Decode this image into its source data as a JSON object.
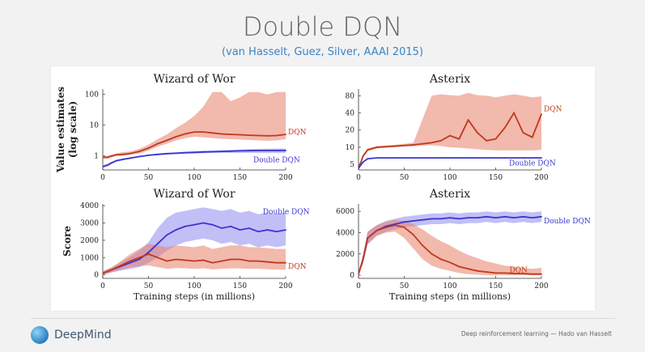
{
  "slide": {
    "title": "Double DQN",
    "subtitle": "(van Hasselt, Guez, Silver, AAAI 2015)",
    "brand": "DeepMind",
    "footer_credit": "Deep reinforcement learning — Hado van Hasselt"
  },
  "colors": {
    "dqn": "#c0391b",
    "ddqn": "#3a35d0",
    "dqn_band": "#e8806a",
    "ddqn_band": "#8f8bee"
  },
  "chart_data": [
    {
      "type": "line",
      "title": "Wizard of Wor",
      "ylabel_line1": "Value estimates",
      "ylabel_line2": "(log scale)",
      "xlabel": "",
      "xlim": [
        0,
        200
      ],
      "ylim": [
        0.35,
        150
      ],
      "yscale": "log",
      "x_ticks": [
        0,
        50,
        100,
        150,
        200
      ],
      "x_tick_labels": [
        "0",
        "50",
        "100",
        "150",
        "200"
      ],
      "y_ticks": [
        1,
        10,
        100
      ],
      "y_tick_labels": [
        "1",
        "10",
        "100"
      ],
      "x": [
        0,
        5,
        10,
        15,
        20,
        30,
        40,
        50,
        60,
        70,
        80,
        90,
        100,
        110,
        120,
        130,
        140,
        150,
        160,
        170,
        180,
        190,
        200
      ],
      "series": [
        {
          "name": "DQN",
          "label_text": "DQN",
          "label_at": [
            202,
            6
          ],
          "values": [
            0.9,
            0.9,
            1.0,
            1.1,
            1.1,
            1.2,
            1.4,
            1.8,
            2.5,
            3.2,
            4.2,
            5.2,
            6,
            6,
            5.6,
            5.2,
            5,
            4.9,
            4.7,
            4.6,
            4.5,
            4.6,
            5.0
          ],
          "lower": [
            0.8,
            0.8,
            0.9,
            1.0,
            1.0,
            1.1,
            1.2,
            1.5,
            2.0,
            2.5,
            3.2,
            3.8,
            4.2,
            4.0,
            3.8,
            3.6,
            3.5,
            3.4,
            3.3,
            3.2,
            3.1,
            3.2,
            3.5
          ],
          "upper": [
            1.0,
            1.0,
            1.1,
            1.2,
            1.3,
            1.4,
            1.7,
            2.3,
            3.5,
            5,
            8,
            12,
            20,
            40,
            120,
            120,
            60,
            80,
            120,
            120,
            100,
            120,
            120
          ]
        },
        {
          "name": "Double DQN",
          "label_text": "Double DQN",
          "label_at": [
            200,
            0.75
          ],
          "values": [
            0.45,
            0.5,
            0.6,
            0.7,
            0.75,
            0.85,
            0.95,
            1.05,
            1.12,
            1.18,
            1.22,
            1.27,
            1.3,
            1.34,
            1.37,
            1.4,
            1.43,
            1.46,
            1.48,
            1.5,
            1.5,
            1.5,
            1.5
          ],
          "lower": [
            0.4,
            0.45,
            0.55,
            0.65,
            0.7,
            0.8,
            0.9,
            1.0,
            1.05,
            1.1,
            1.14,
            1.18,
            1.2,
            1.22,
            1.24,
            1.25,
            1.25,
            1.25,
            1.25,
            1.25,
            1.24,
            1.24,
            1.24
          ],
          "upper": [
            0.5,
            0.55,
            0.65,
            0.75,
            0.8,
            0.9,
            1.0,
            1.1,
            1.2,
            1.27,
            1.32,
            1.37,
            1.42,
            1.47,
            1.5,
            1.53,
            1.57,
            1.6,
            1.65,
            1.7,
            1.72,
            1.74,
            1.75
          ]
        }
      ]
    },
    {
      "type": "line",
      "title": "Asterix",
      "xlabel": "",
      "xlim": [
        0,
        200
      ],
      "ylim": [
        4,
        105
      ],
      "yscale": "log",
      "x_ticks": [
        0,
        50,
        100,
        150,
        200
      ],
      "x_tick_labels": [
        "0",
        "50",
        "100",
        "150",
        "200"
      ],
      "y_ticks": [
        5,
        10,
        20,
        40,
        80
      ],
      "y_tick_labels": [
        "5",
        "10",
        "20",
        "40",
        "80"
      ],
      "x": [
        0,
        5,
        10,
        20,
        40,
        60,
        80,
        90,
        100,
        110,
        120,
        130,
        140,
        150,
        160,
        170,
        180,
        190,
        200
      ],
      "series": [
        {
          "name": "DQN",
          "label_text": "DQN",
          "label_at": [
            203,
            47
          ],
          "values": [
            4.2,
            7,
            9,
            10,
            10.5,
            11,
            12,
            13,
            16,
            14,
            30,
            18,
            13,
            14,
            22,
            40,
            18,
            15,
            38
          ],
          "lower": [
            4.0,
            6.5,
            8.5,
            9.5,
            10,
            10.4,
            10.8,
            10.5,
            10,
            9.8,
            9.5,
            9.2,
            9.0,
            8.8,
            8.8,
            8.8,
            8.8,
            8.8,
            9.0
          ],
          "upper": [
            4.5,
            7.5,
            9.5,
            10.5,
            11,
            12,
            80,
            85,
            82,
            80,
            90,
            82,
            80,
            75,
            80,
            85,
            80,
            75,
            78
          ]
        },
        {
          "name": "Double DQN",
          "label_text": "Double DQN",
          "label_at": [
            200,
            5.3
          ],
          "values": [
            4.3,
            5.5,
            6.3,
            6.5,
            6.5,
            6.5,
            6.5,
            6.5,
            6.5,
            6.5,
            6.5,
            6.5,
            6.5,
            6.5,
            6.5,
            6.5,
            6.5,
            6.5,
            6.5
          ],
          "lower": [
            4.2,
            5.4,
            6.2,
            6.4,
            6.4,
            6.4,
            6.4,
            6.4,
            6.4,
            6.4,
            6.4,
            6.4,
            6.4,
            6.4,
            6.4,
            6.4,
            6.4,
            6.4,
            6.4
          ],
          "upper": [
            4.4,
            5.6,
            6.4,
            6.6,
            6.6,
            6.6,
            6.6,
            6.6,
            6.6,
            6.6,
            6.6,
            6.6,
            6.6,
            6.6,
            6.6,
            6.6,
            6.6,
            6.6,
            6.6
          ]
        }
      ]
    },
    {
      "type": "line",
      "title": "Wizard of Wor",
      "ylabel": "Score",
      "xlabel": "Training steps (in millions)",
      "xlim": [
        0,
        200
      ],
      "ylim": [
        -200,
        4100
      ],
      "yscale": "linear",
      "x_ticks": [
        0,
        50,
        100,
        150,
        200
      ],
      "x_tick_labels": [
        "0",
        "50",
        "100",
        "150",
        "200"
      ],
      "y_ticks": [
        0,
        1000,
        2000,
        3000,
        4000
      ],
      "y_tick_labels": [
        "0",
        "1000",
        "2000",
        "3000",
        "4000"
      ],
      "x": [
        0,
        10,
        20,
        30,
        40,
        50,
        60,
        70,
        80,
        90,
        100,
        110,
        120,
        130,
        140,
        150,
        160,
        170,
        180,
        190,
        200
      ],
      "series": [
        {
          "name": "Double DQN",
          "label_text": "Double DQN",
          "label_at": [
            175,
            3650
          ],
          "values": [
            100,
            300,
            500,
            700,
            900,
            1300,
            1800,
            2300,
            2600,
            2800,
            2900,
            3000,
            2900,
            2700,
            2800,
            2600,
            2700,
            2500,
            2600,
            2500,
            2600
          ],
          "lower": [
            0,
            150,
            250,
            350,
            450,
            700,
            1000,
            1400,
            1700,
            1900,
            2000,
            2100,
            2000,
            1800,
            1900,
            1700,
            1800,
            1600,
            1700,
            1600,
            1700
          ],
          "upper": [
            200,
            450,
            750,
            1050,
            1400,
            1900,
            2700,
            3300,
            3600,
            3700,
            3800,
            3900,
            3800,
            3700,
            3800,
            3600,
            3700,
            3500,
            3600,
            3500,
            3600
          ]
        },
        {
          "name": "DQN",
          "label_text": "DQN",
          "label_at": [
            202,
            500
          ],
          "values": [
            100,
            300,
            550,
            800,
            1000,
            1200,
            1000,
            800,
            900,
            850,
            800,
            850,
            700,
            800,
            900,
            900,
            800,
            800,
            750,
            700,
            700
          ],
          "lower": [
            0,
            150,
            300,
            450,
            500,
            550,
            450,
            350,
            400,
            380,
            350,
            380,
            320,
            350,
            380,
            380,
            350,
            350,
            330,
            300,
            300
          ],
          "upper": [
            200,
            450,
            800,
            1200,
            1500,
            1800,
            1700,
            1600,
            1700,
            1650,
            1600,
            1700,
            1500,
            1600,
            1700,
            1700,
            1600,
            1600,
            1550,
            1500,
            1500
          ]
        }
      ]
    },
    {
      "type": "line",
      "title": "Asterix",
      "xlabel": "Training steps (in millions)",
      "xlim": [
        0,
        200
      ],
      "ylim": [
        -300,
        6700
      ],
      "yscale": "linear",
      "x_ticks": [
        0,
        50,
        100,
        150,
        200
      ],
      "x_tick_labels": [
        "0",
        "50",
        "100",
        "150",
        "200"
      ],
      "y_ticks": [
        0,
        2000,
        4000,
        6000
      ],
      "y_tick_labels": [
        "0",
        "2000",
        "4000",
        "6000"
      ],
      "x": [
        0,
        5,
        10,
        20,
        30,
        40,
        50,
        60,
        70,
        80,
        90,
        100,
        110,
        120,
        130,
        140,
        150,
        160,
        170,
        180,
        190,
        200
      ],
      "series": [
        {
          "name": "Double DQN",
          "label_text": "Double DQN",
          "label_at": [
            203,
            5100
          ],
          "values": [
            100,
            1500,
            3500,
            4200,
            4600,
            4800,
            5000,
            5100,
            5200,
            5300,
            5300,
            5400,
            5300,
            5400,
            5400,
            5500,
            5400,
            5500,
            5400,
            5500,
            5400,
            5500
          ],
          "lower": [
            0,
            1100,
            2900,
            3700,
            4100,
            4300,
            4500,
            4600,
            4700,
            4800,
            4800,
            4900,
            4800,
            4900,
            4900,
            5000,
            4900,
            5000,
            4900,
            5000,
            4900,
            5000
          ],
          "upper": [
            200,
            1900,
            4100,
            4700,
            5100,
            5300,
            5500,
            5600,
            5700,
            5800,
            5800,
            5900,
            5800,
            5900,
            5900,
            6000,
            5900,
            6000,
            5900,
            6000,
            5900,
            6000
          ]
        },
        {
          "name": "DQN",
          "label_text": "DQN",
          "label_at": [
            165,
            500
          ],
          "values": [
            100,
            1500,
            3500,
            4200,
            4500,
            4700,
            4500,
            3800,
            2800,
            2000,
            1500,
            1200,
            800,
            600,
            400,
            300,
            200,
            200,
            150,
            150,
            100,
            100
          ],
          "lower": [
            0,
            1100,
            2900,
            3700,
            4000,
            4100,
            3500,
            2500,
            1500,
            900,
            600,
            400,
            200,
            100,
            50,
            0,
            0,
            0,
            0,
            0,
            0,
            0
          ],
          "upper": [
            200,
            1900,
            4100,
            4700,
            5000,
            5200,
            5100,
            4800,
            4300,
            3700,
            3200,
            2800,
            2300,
            1900,
            1600,
            1300,
            1100,
            900,
            800,
            700,
            600,
            700
          ]
        }
      ]
    }
  ]
}
